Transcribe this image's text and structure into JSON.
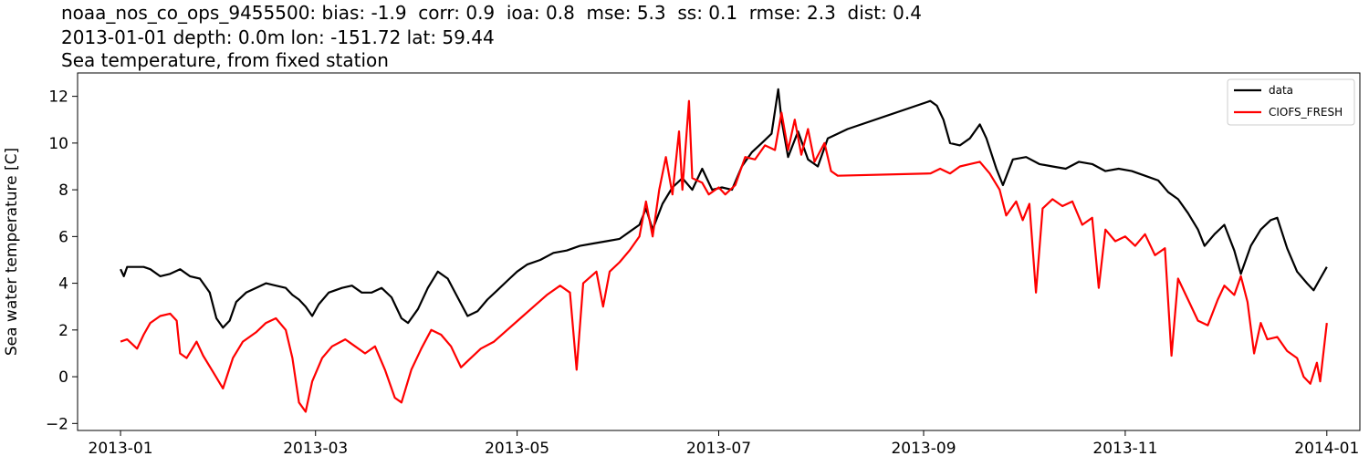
{
  "header": {
    "title_line1": "noaa_nos_co_ops_9455500: bias: -1.9  corr: 0.9  ioa: 0.8  mse: 5.3  ss: 0.1  rmse: 2.3  dist: 0.4",
    "title_line2": "2013-01-01 depth: 0.0m lon: -151.72 lat: 59.44",
    "title_line3": "Sea temperature, from fixed station"
  },
  "chart_data": {
    "type": "line",
    "ylabel": "Sea water temperature [C]",
    "xlabel": "",
    "ylim": [
      -2.3,
      13
    ],
    "y_ticks": [
      -2,
      0,
      2,
      4,
      6,
      8,
      10,
      12
    ],
    "y_tick_labels": [
      "−2",
      "0",
      "2",
      "4",
      "6",
      "8",
      "10",
      "12"
    ],
    "x_ticks": [
      "2013-01-01",
      "2013-03-01",
      "2013-05-01",
      "2013-07-01",
      "2013-09-01",
      "2013-11-01",
      "2014-01-01"
    ],
    "x_tick_labels": [
      "2013-01",
      "2013-03",
      "2013-05",
      "2013-07",
      "2013-09",
      "2013-11",
      "2014-01"
    ],
    "xlim": [
      "2012-12-19",
      "2014-01-11"
    ],
    "grid": false,
    "legend": {
      "position": "top-right"
    },
    "series": [
      {
        "name": "data",
        "color": "#000000",
        "points": [
          [
            "2013-01-01",
            4.6
          ],
          [
            "2013-01-02",
            4.3
          ],
          [
            "2013-01-03",
            4.7
          ],
          [
            "2013-01-08",
            4.7
          ],
          [
            "2013-01-10",
            4.6
          ],
          [
            "2013-01-13",
            4.3
          ],
          [
            "2013-01-16",
            4.4
          ],
          [
            "2013-01-19",
            4.6
          ],
          [
            "2013-01-22",
            4.3
          ],
          [
            "2013-01-25",
            4.2
          ],
          [
            "2013-01-28",
            3.6
          ],
          [
            "2013-01-30",
            2.5
          ],
          [
            "2013-02-01",
            2.1
          ],
          [
            "2013-02-03",
            2.4
          ],
          [
            "2013-02-05",
            3.2
          ],
          [
            "2013-02-08",
            3.6
          ],
          [
            "2013-02-11",
            3.8
          ],
          [
            "2013-02-14",
            4.0
          ],
          [
            "2013-02-17",
            3.9
          ],
          [
            "2013-02-20",
            3.8
          ],
          [
            "2013-02-22",
            3.5
          ],
          [
            "2013-02-24",
            3.3
          ],
          [
            "2013-02-26",
            3.0
          ],
          [
            "2013-02-28",
            2.6
          ],
          [
            "2013-03-02",
            3.1
          ],
          [
            "2013-03-05",
            3.6
          ],
          [
            "2013-03-09",
            3.8
          ],
          [
            "2013-03-12",
            3.9
          ],
          [
            "2013-03-15",
            3.6
          ],
          [
            "2013-03-18",
            3.6
          ],
          [
            "2013-03-21",
            3.8
          ],
          [
            "2013-03-24",
            3.4
          ],
          [
            "2013-03-27",
            2.5
          ],
          [
            "2013-03-29",
            2.3
          ],
          [
            "2013-04-01",
            2.9
          ],
          [
            "2013-04-04",
            3.8
          ],
          [
            "2013-04-07",
            4.5
          ],
          [
            "2013-04-10",
            4.2
          ],
          [
            "2013-04-13",
            3.4
          ],
          [
            "2013-04-16",
            2.6
          ],
          [
            "2013-04-19",
            2.8
          ],
          [
            "2013-04-22",
            3.3
          ],
          [
            "2013-04-25",
            3.7
          ],
          [
            "2013-04-28",
            4.1
          ],
          [
            "2013-05-01",
            4.5
          ],
          [
            "2013-05-04",
            4.8
          ],
          [
            "2013-05-08",
            5.0
          ],
          [
            "2013-05-12",
            5.3
          ],
          [
            "2013-05-16",
            5.4
          ],
          [
            "2013-05-20",
            5.6
          ],
          [
            "2013-05-24",
            5.7
          ],
          [
            "2013-05-28",
            5.8
          ],
          [
            "2013-06-01",
            5.9
          ],
          [
            "2013-06-04",
            6.2
          ],
          [
            "2013-06-07",
            6.5
          ],
          [
            "2013-06-09",
            7.2
          ],
          [
            "2013-06-11",
            6.3
          ],
          [
            "2013-06-14",
            7.4
          ],
          [
            "2013-06-17",
            8.1
          ],
          [
            "2013-06-20",
            8.5
          ],
          [
            "2013-06-23",
            8.0
          ],
          [
            "2013-06-26",
            8.9
          ],
          [
            "2013-06-29",
            8.0
          ],
          [
            "2013-07-02",
            8.1
          ],
          [
            "2013-07-05",
            8.0
          ],
          [
            "2013-07-08",
            9.0
          ],
          [
            "2013-07-11",
            9.6
          ],
          [
            "2013-07-14",
            10.0
          ],
          [
            "2013-07-17",
            10.4
          ],
          [
            "2013-07-19",
            12.3
          ],
          [
            "2013-07-20",
            11.0
          ],
          [
            "2013-07-22",
            9.4
          ],
          [
            "2013-07-25",
            10.5
          ],
          [
            "2013-07-28",
            9.3
          ],
          [
            "2013-07-31",
            9.0
          ],
          [
            "2013-08-03",
            10.2
          ],
          [
            "2013-08-06",
            10.4
          ],
          [
            "2013-08-09",
            10.6
          ],
          [
            "2013-09-03",
            11.8
          ],
          [
            "2013-09-05",
            11.6
          ],
          [
            "2013-09-07",
            11.0
          ],
          [
            "2013-09-09",
            10.0
          ],
          [
            "2013-09-12",
            9.9
          ],
          [
            "2013-09-15",
            10.2
          ],
          [
            "2013-09-18",
            10.8
          ],
          [
            "2013-09-20",
            10.2
          ],
          [
            "2013-09-23",
            8.9
          ],
          [
            "2013-09-25",
            8.2
          ],
          [
            "2013-09-28",
            9.3
          ],
          [
            "2013-10-02",
            9.4
          ],
          [
            "2013-10-06",
            9.1
          ],
          [
            "2013-10-10",
            9.0
          ],
          [
            "2013-10-14",
            8.9
          ],
          [
            "2013-10-18",
            9.2
          ],
          [
            "2013-10-22",
            9.1
          ],
          [
            "2013-10-26",
            8.8
          ],
          [
            "2013-10-30",
            8.9
          ],
          [
            "2013-11-03",
            8.8
          ],
          [
            "2013-11-07",
            8.6
          ],
          [
            "2013-11-11",
            8.4
          ],
          [
            "2013-11-14",
            7.9
          ],
          [
            "2013-11-17",
            7.6
          ],
          [
            "2013-11-20",
            7.0
          ],
          [
            "2013-11-23",
            6.3
          ],
          [
            "2013-11-25",
            5.6
          ],
          [
            "2013-11-28",
            6.1
          ],
          [
            "2013-12-01",
            6.5
          ],
          [
            "2013-12-04",
            5.4
          ],
          [
            "2013-12-06",
            4.4
          ],
          [
            "2013-12-09",
            5.6
          ],
          [
            "2013-12-12",
            6.3
          ],
          [
            "2013-12-15",
            6.7
          ],
          [
            "2013-12-17",
            6.8
          ],
          [
            "2013-12-20",
            5.5
          ],
          [
            "2013-12-23",
            4.5
          ],
          [
            "2013-12-26",
            4.0
          ],
          [
            "2013-12-28",
            3.7
          ],
          [
            "2013-12-30",
            4.2
          ],
          [
            "2014-01-01",
            4.7
          ]
        ]
      },
      {
        "name": "CIOFS_FRESH",
        "color": "#ff0000",
        "points": [
          [
            "2013-01-01",
            1.5
          ],
          [
            "2013-01-03",
            1.6
          ],
          [
            "2013-01-06",
            1.2
          ],
          [
            "2013-01-08",
            1.8
          ],
          [
            "2013-01-10",
            2.3
          ],
          [
            "2013-01-13",
            2.6
          ],
          [
            "2013-01-16",
            2.7
          ],
          [
            "2013-01-18",
            2.4
          ],
          [
            "2013-01-19",
            1.0
          ],
          [
            "2013-01-21",
            0.8
          ],
          [
            "2013-01-24",
            1.5
          ],
          [
            "2013-01-26",
            0.9
          ],
          [
            "2013-01-29",
            0.2
          ],
          [
            "2013-02-01",
            -0.5
          ],
          [
            "2013-02-04",
            0.8
          ],
          [
            "2013-02-07",
            1.5
          ],
          [
            "2013-02-11",
            1.9
          ],
          [
            "2013-02-14",
            2.3
          ],
          [
            "2013-02-17",
            2.5
          ],
          [
            "2013-02-20",
            2.0
          ],
          [
            "2013-02-22",
            0.8
          ],
          [
            "2013-02-24",
            -1.1
          ],
          [
            "2013-02-26",
            -1.5
          ],
          [
            "2013-02-28",
            -0.2
          ],
          [
            "2013-03-03",
            0.8
          ],
          [
            "2013-03-06",
            1.3
          ],
          [
            "2013-03-10",
            1.6
          ],
          [
            "2013-03-13",
            1.3
          ],
          [
            "2013-03-16",
            1.0
          ],
          [
            "2013-03-19",
            1.3
          ],
          [
            "2013-03-22",
            0.3
          ],
          [
            "2013-03-25",
            -0.9
          ],
          [
            "2013-03-27",
            -1.1
          ],
          [
            "2013-03-30",
            0.3
          ],
          [
            "2013-04-02",
            1.2
          ],
          [
            "2013-04-05",
            2.0
          ],
          [
            "2013-04-08",
            1.8
          ],
          [
            "2013-04-11",
            1.3
          ],
          [
            "2013-04-14",
            0.4
          ],
          [
            "2013-04-17",
            0.8
          ],
          [
            "2013-04-20",
            1.2
          ],
          [
            "2013-04-24",
            1.5
          ],
          [
            "2013-04-28",
            2.0
          ],
          [
            "2013-05-02",
            2.5
          ],
          [
            "2013-05-06",
            3.0
          ],
          [
            "2013-05-10",
            3.5
          ],
          [
            "2013-05-14",
            3.9
          ],
          [
            "2013-05-17",
            3.6
          ],
          [
            "2013-05-19",
            0.3
          ],
          [
            "2013-05-21",
            4.0
          ],
          [
            "2013-05-25",
            4.5
          ],
          [
            "2013-05-27",
            3.0
          ],
          [
            "2013-05-29",
            4.5
          ],
          [
            "2013-06-01",
            4.9
          ],
          [
            "2013-06-04",
            5.4
          ],
          [
            "2013-06-07",
            6.0
          ],
          [
            "2013-06-09",
            7.5
          ],
          [
            "2013-06-11",
            6.0
          ],
          [
            "2013-06-13",
            8.0
          ],
          [
            "2013-06-15",
            9.4
          ],
          [
            "2013-06-17",
            7.8
          ],
          [
            "2013-06-19",
            10.5
          ],
          [
            "2013-06-20",
            8.0
          ],
          [
            "2013-06-22",
            11.8
          ],
          [
            "2013-06-23",
            8.5
          ],
          [
            "2013-06-26",
            8.3
          ],
          [
            "2013-06-28",
            7.8
          ],
          [
            "2013-07-01",
            8.1
          ],
          [
            "2013-07-03",
            7.8
          ],
          [
            "2013-07-06",
            8.2
          ],
          [
            "2013-07-09",
            9.4
          ],
          [
            "2013-07-12",
            9.3
          ],
          [
            "2013-07-15",
            9.9
          ],
          [
            "2013-07-18",
            9.7
          ],
          [
            "2013-07-20",
            11.3
          ],
          [
            "2013-07-22",
            9.7
          ],
          [
            "2013-07-24",
            11.0
          ],
          [
            "2013-07-26",
            9.5
          ],
          [
            "2013-07-28",
            10.6
          ],
          [
            "2013-07-30",
            9.2
          ],
          [
            "2013-08-02",
            10.0
          ],
          [
            "2013-08-04",
            8.8
          ],
          [
            "2013-08-06",
            8.6
          ],
          [
            "2013-09-03",
            8.7
          ],
          [
            "2013-09-06",
            8.9
          ],
          [
            "2013-09-09",
            8.7
          ],
          [
            "2013-09-12",
            9.0
          ],
          [
            "2013-09-15",
            9.1
          ],
          [
            "2013-09-18",
            9.2
          ],
          [
            "2013-09-21",
            8.7
          ],
          [
            "2013-09-24",
            8.0
          ],
          [
            "2013-09-26",
            6.9
          ],
          [
            "2013-09-29",
            7.5
          ],
          [
            "2013-10-01",
            6.7
          ],
          [
            "2013-10-03",
            7.4
          ],
          [
            "2013-10-05",
            3.6
          ],
          [
            "2013-10-07",
            7.2
          ],
          [
            "2013-10-10",
            7.6
          ],
          [
            "2013-10-13",
            7.3
          ],
          [
            "2013-10-16",
            7.5
          ],
          [
            "2013-10-19",
            6.5
          ],
          [
            "2013-10-22",
            6.8
          ],
          [
            "2013-10-24",
            3.8
          ],
          [
            "2013-10-26",
            6.3
          ],
          [
            "2013-10-29",
            5.8
          ],
          [
            "2013-11-01",
            6.0
          ],
          [
            "2013-11-04",
            5.6
          ],
          [
            "2013-11-07",
            6.1
          ],
          [
            "2013-11-10",
            5.2
          ],
          [
            "2013-11-13",
            5.5
          ],
          [
            "2013-11-15",
            0.9
          ],
          [
            "2013-11-17",
            4.2
          ],
          [
            "2013-11-20",
            3.3
          ],
          [
            "2013-11-23",
            2.4
          ],
          [
            "2013-11-26",
            2.2
          ],
          [
            "2013-11-29",
            3.3
          ],
          [
            "2013-12-01",
            3.9
          ],
          [
            "2013-12-04",
            3.5
          ],
          [
            "2013-12-06",
            4.3
          ],
          [
            "2013-12-08",
            3.2
          ],
          [
            "2013-12-10",
            1.0
          ],
          [
            "2013-12-12",
            2.3
          ],
          [
            "2013-12-14",
            1.6
          ],
          [
            "2013-12-17",
            1.7
          ],
          [
            "2013-12-20",
            1.1
          ],
          [
            "2013-12-23",
            0.8
          ],
          [
            "2013-12-25",
            0.0
          ],
          [
            "2013-12-27",
            -0.3
          ],
          [
            "2013-12-29",
            0.6
          ],
          [
            "2013-12-30",
            -0.2
          ],
          [
            "2014-01-01",
            2.3
          ]
        ]
      }
    ]
  }
}
